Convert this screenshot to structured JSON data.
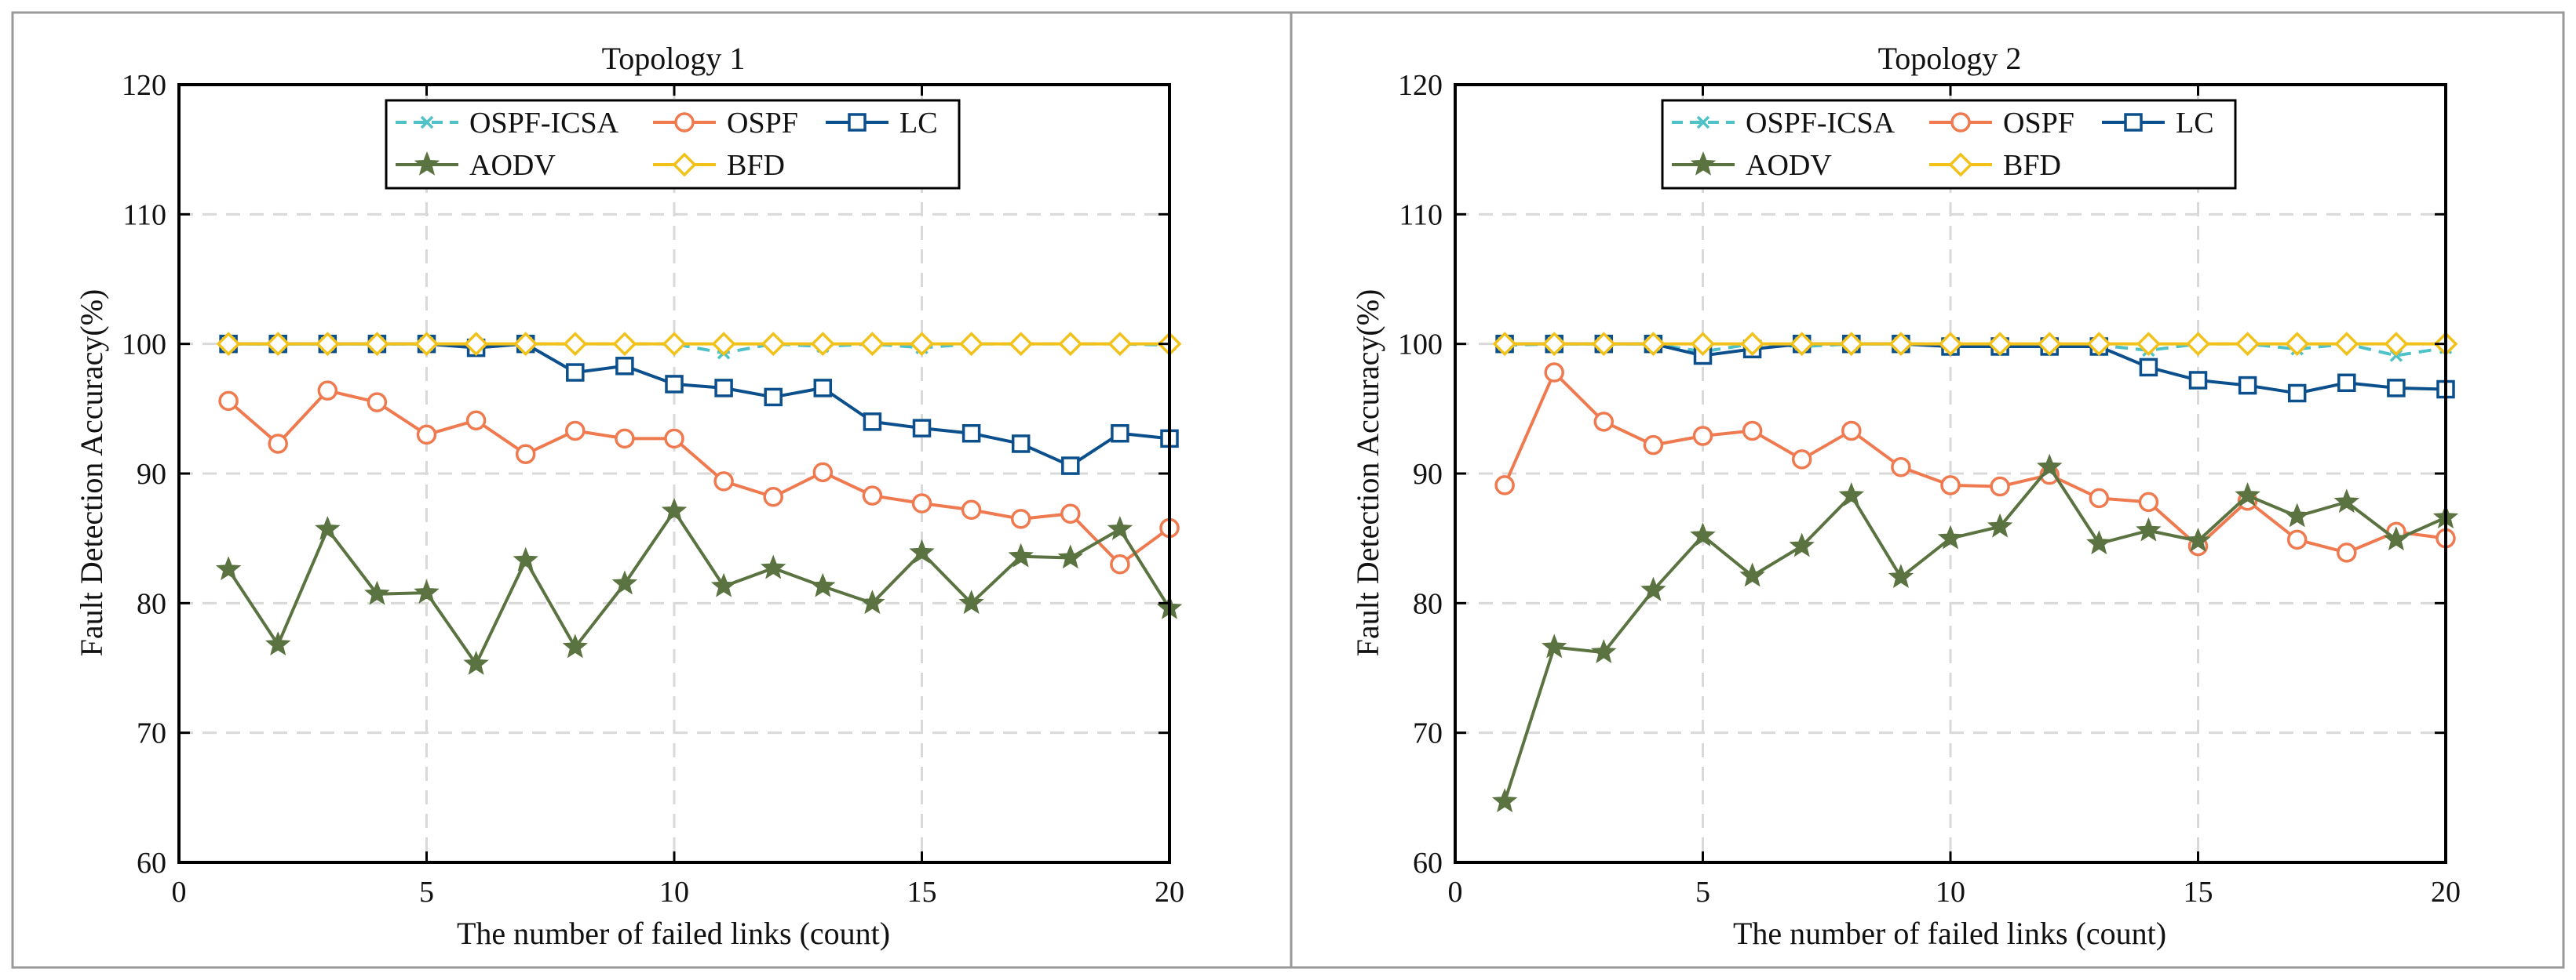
{
  "colors": {
    "OSPF-ICSA": "#4fc2c8",
    "OSPF": "#ef7a4f",
    "LC": "#0b4f8c",
    "AODV": "#5a7340",
    "BFD": "#f2c21b",
    "grid": "#d9d9d9",
    "frame": "#999999"
  },
  "chart_data": [
    {
      "type": "line",
      "title": "Topology 1",
      "xlabel": "The number of failed links (count)",
      "ylabel": "Fault Detection Accuracy(%)",
      "xlim": [
        0,
        20
      ],
      "ylim": [
        60,
        120
      ],
      "xticks": [
        0,
        5,
        10,
        15,
        20
      ],
      "yticks": [
        60,
        70,
        80,
        90,
        100,
        110,
        120
      ],
      "grid": true,
      "legend_location": "top-center",
      "x": [
        1,
        2,
        3,
        4,
        5,
        6,
        7,
        8,
        9,
        10,
        11,
        12,
        13,
        14,
        15,
        16,
        17,
        18,
        19,
        20
      ],
      "series": [
        {
          "name": "OSPF-ICSA",
          "marker": "x",
          "dash": "dashed",
          "values": [
            100,
            100,
            100,
            100,
            100,
            99.8,
            100,
            100,
            100,
            100,
            99.3,
            100,
            99.8,
            100,
            99.7,
            100,
            100,
            100,
            100,
            99.9
          ]
        },
        {
          "name": "OSPF",
          "marker": "circle",
          "dash": "solid",
          "values": [
            95.6,
            92.3,
            96.4,
            95.5,
            93.0,
            94.1,
            91.5,
            93.3,
            92.7,
            92.7,
            89.4,
            88.2,
            90.1,
            88.3,
            87.7,
            87.2,
            86.5,
            86.9,
            83.0,
            85.8
          ]
        },
        {
          "name": "LC",
          "marker": "square",
          "dash": "solid",
          "values": [
            100,
            100,
            100,
            100,
            100,
            99.7,
            100,
            97.8,
            98.3,
            96.9,
            96.6,
            95.9,
            96.6,
            94.0,
            93.5,
            93.1,
            92.3,
            90.6,
            93.1,
            92.7
          ]
        },
        {
          "name": "AODV",
          "marker": "star",
          "dash": "solid",
          "values": [
            82.6,
            76.8,
            85.7,
            80.7,
            80.8,
            75.3,
            83.3,
            76.6,
            81.5,
            87.1,
            81.3,
            82.7,
            81.3,
            80.0,
            83.9,
            80.0,
            83.6,
            83.5,
            85.7,
            79.6
          ]
        },
        {
          "name": "BFD",
          "marker": "diamond",
          "dash": "solid",
          "values": [
            100,
            100,
            100,
            100,
            100,
            100,
            100,
            100,
            100,
            100,
            100,
            100,
            100,
            100,
            100,
            100,
            100,
            100,
            100,
            100
          ]
        }
      ]
    },
    {
      "type": "line",
      "title": "Topology 2",
      "xlabel": "The number of failed links (count)",
      "ylabel": "Fault Detection Accuracy(%)",
      "xlim": [
        0,
        20
      ],
      "ylim": [
        60,
        120
      ],
      "xticks": [
        0,
        5,
        10,
        15,
        20
      ],
      "yticks": [
        60,
        70,
        80,
        90,
        100,
        110,
        120
      ],
      "grid": true,
      "legend_location": "top-center",
      "x": [
        1,
        2,
        3,
        4,
        5,
        6,
        7,
        8,
        9,
        10,
        11,
        12,
        13,
        14,
        15,
        16,
        17,
        18,
        19,
        20
      ],
      "series": [
        {
          "name": "OSPF-ICSA",
          "marker": "x",
          "dash": "dashed",
          "values": [
            99.9,
            100,
            100,
            100,
            99.4,
            100,
            99.8,
            100,
            100,
            100,
            99.9,
            100,
            99.9,
            99.5,
            100,
            100,
            99.6,
            100,
            99.1,
            99.7
          ]
        },
        {
          "name": "OSPF",
          "marker": "circle",
          "dash": "solid",
          "values": [
            89.1,
            97.8,
            94.0,
            92.2,
            92.9,
            93.3,
            91.1,
            93.3,
            90.5,
            89.1,
            89.0,
            89.9,
            88.1,
            87.8,
            84.4,
            87.9,
            84.9,
            83.9,
            85.5,
            85.0
          ]
        },
        {
          "name": "LC",
          "marker": "square",
          "dash": "solid",
          "values": [
            100,
            100,
            100,
            100,
            99.1,
            99.6,
            100,
            100,
            100,
            99.8,
            99.8,
            99.8,
            99.8,
            98.2,
            97.2,
            96.8,
            96.2,
            97.0,
            96.6,
            96.5
          ]
        },
        {
          "name": "AODV",
          "marker": "star",
          "dash": "solid",
          "values": [
            64.7,
            76.6,
            76.2,
            81.0,
            85.2,
            82.1,
            84.4,
            88.3,
            82.0,
            85.0,
            85.9,
            90.5,
            84.6,
            85.6,
            84.8,
            88.3,
            86.7,
            87.8,
            84.9,
            86.6
          ]
        },
        {
          "name": "BFD",
          "marker": "diamond",
          "dash": "solid",
          "values": [
            100,
            100,
            100,
            100,
            100,
            100,
            100,
            100,
            100,
            100,
            100,
            100,
            100,
            100,
            100,
            100,
            100,
            100,
            100,
            100
          ]
        }
      ]
    }
  ]
}
